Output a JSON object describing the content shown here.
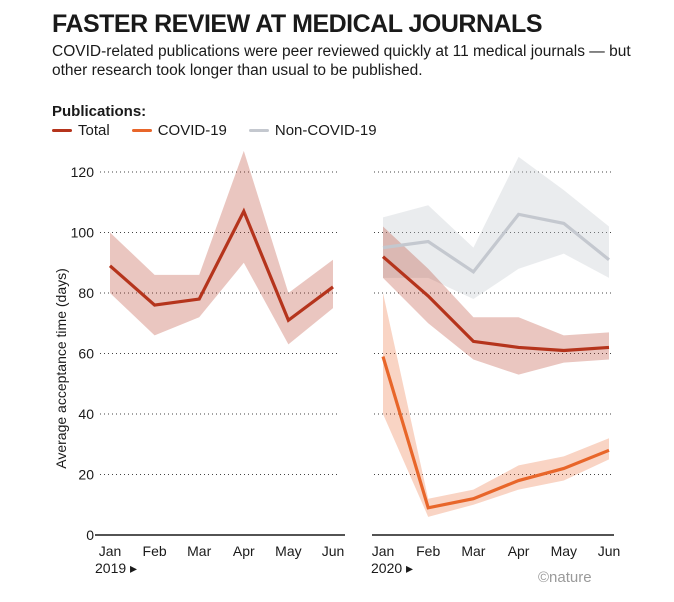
{
  "title": "FASTER REVIEW AT MEDICAL JOURNALS",
  "subtitle": "COVID-related publications were peer reviewed quickly at 11 medical journals — but other research took longer than usual to be published.",
  "legend": {
    "title": "Publications:",
    "items": [
      {
        "label": "Total",
        "color": "#b5341c"
      },
      {
        "label": "COVID-19",
        "color": "#e8662a"
      },
      {
        "label": "Non-COVID-19",
        "color": "#c4c8cf"
      }
    ]
  },
  "credit": "©nature",
  "chart_data": [
    {
      "type": "line",
      "panel": "2019",
      "year_label": "2019 ▸",
      "categories": [
        "Jan",
        "Feb",
        "Mar",
        "Apr",
        "May",
        "Jun"
      ],
      "ylabel": "Average acceptance time (days)",
      "ylim": [
        0,
        120
      ],
      "yticks": [
        0,
        20,
        40,
        60,
        80,
        100,
        120
      ],
      "grid": "horizontal dotted",
      "series": [
        {
          "name": "Total",
          "color": "#b5341c",
          "values": [
            89,
            76,
            78,
            107,
            71,
            82
          ],
          "lower": [
            80,
            66,
            72,
            90,
            63,
            75
          ],
          "upper": [
            100,
            86,
            86,
            127,
            80,
            91
          ]
        }
      ]
    },
    {
      "type": "line",
      "panel": "2020",
      "year_label": "2020 ▸",
      "categories": [
        "Jan",
        "Feb",
        "Mar",
        "Apr",
        "May",
        "Jun"
      ],
      "ylim": [
        0,
        120
      ],
      "yticks": [
        0,
        20,
        40,
        60,
        80,
        100,
        120
      ],
      "grid": "horizontal dotted",
      "series": [
        {
          "name": "Non-COVID-19",
          "color": "#c4c8cf",
          "values": [
            95,
            97,
            87,
            106,
            103,
            91
          ],
          "lower": [
            85,
            85,
            78,
            88,
            93,
            85
          ],
          "upper": [
            105,
            109,
            95,
            125,
            114,
            102
          ]
        },
        {
          "name": "Total",
          "color": "#b5341c",
          "values": [
            92,
            79,
            64,
            62,
            61,
            62
          ],
          "lower": [
            85,
            70,
            58,
            53,
            57,
            58
          ],
          "upper": [
            102,
            88,
            72,
            72,
            66,
            67
          ]
        },
        {
          "name": "COVID-19",
          "color": "#e8662a",
          "values": [
            59,
            9,
            12,
            18,
            22,
            28
          ],
          "lower": [
            40,
            6,
            10,
            15,
            18,
            25
          ],
          "upper": [
            80,
            12,
            15,
            23,
            26,
            32
          ]
        }
      ]
    }
  ]
}
